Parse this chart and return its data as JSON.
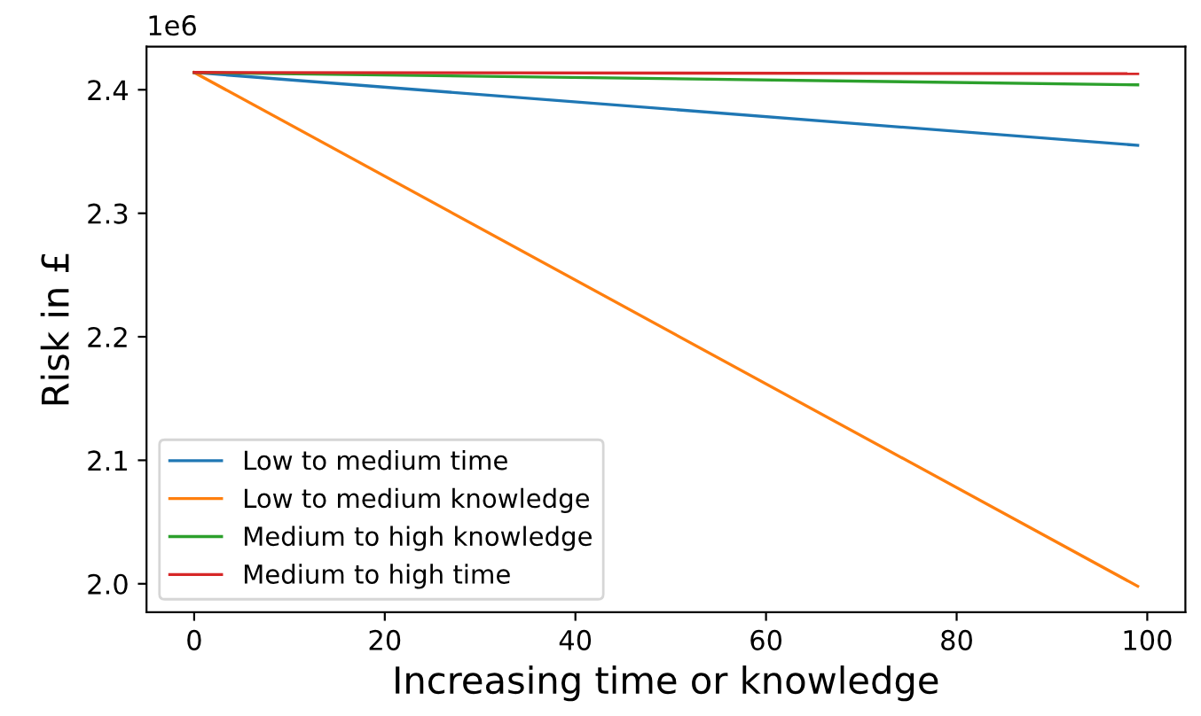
{
  "chart_data": {
    "type": "line",
    "xlabel": "Increasing time or knowledge",
    "ylabel": "Risk in £",
    "x": [
      0,
      99
    ],
    "series": [
      {
        "name": "Low to medium time",
        "color": "#1f77b4",
        "values": [
          2.414,
          2.355
        ]
      },
      {
        "name": "Low to medium knowledge",
        "color": "#ff7f0e",
        "values": [
          2.414,
          1.998
        ]
      },
      {
        "name": "Medium to high knowledge",
        "color": "#2ca02c",
        "values": [
          2.414,
          2.404
        ]
      },
      {
        "name": "Medium to high time",
        "color": "#d62728",
        "values": [
          2.414,
          2.413
        ]
      }
    ],
    "xlim": [
      -5,
      104
    ],
    "xticks": [
      0,
      20,
      40,
      60,
      80,
      100
    ],
    "ylim": [
      1.977,
      2.435
    ],
    "yticks": [
      {
        "value": 2.0,
        "label": "2.0"
      },
      {
        "value": 2.1,
        "label": "2.1"
      },
      {
        "value": 2.2,
        "label": "2.2"
      },
      {
        "value": 2.3,
        "label": "2.3"
      },
      {
        "value": 2.4,
        "label": "2.4"
      }
    ],
    "annotations": [
      "1e6"
    ],
    "legend": "bottom left",
    "grid": false,
    "marker": "none",
    "line_style": "solid"
  }
}
